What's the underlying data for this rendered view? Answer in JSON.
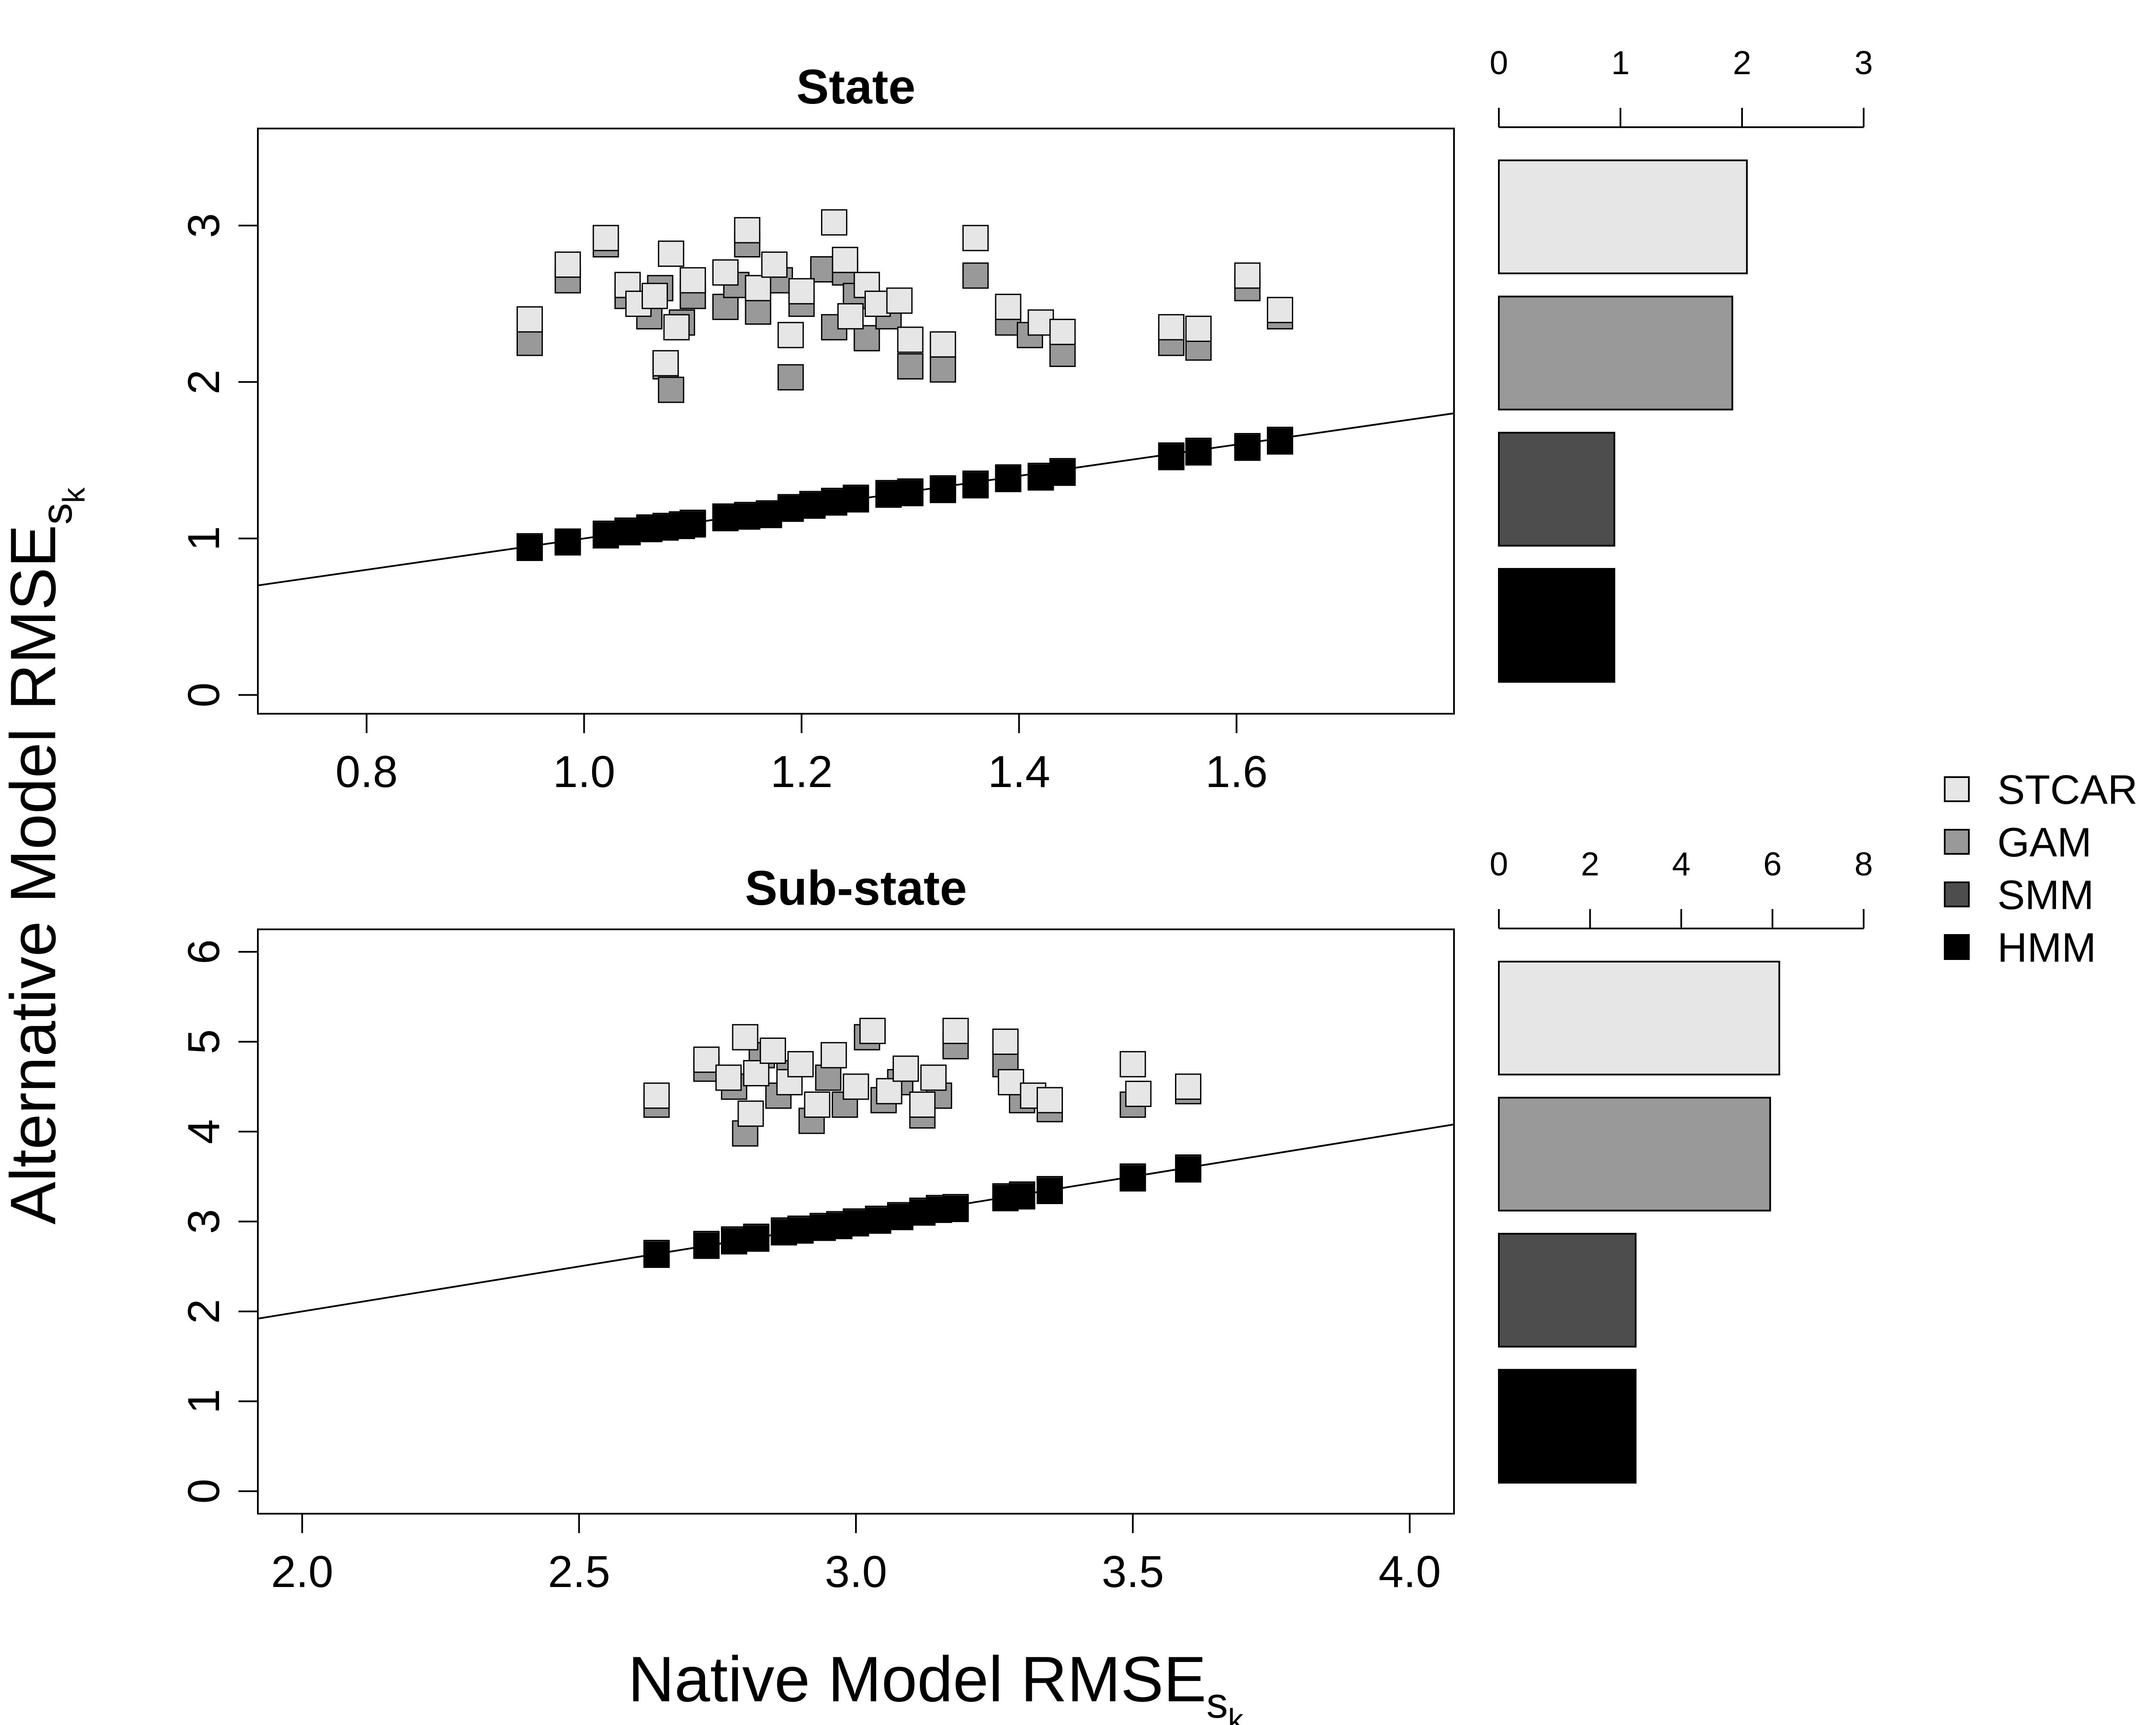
{
  "legend": [
    {
      "name": "STCAR",
      "color": "#e6e6e6"
    },
    {
      "name": "GAM",
      "color": "#999999"
    },
    {
      "name": "SMM",
      "color": "#4d4d4d"
    },
    {
      "name": "HMM",
      "color": "#000000"
    }
  ],
  "axes": {
    "xlabel_main": "Native Model RMSE",
    "ylabel_main": "Alternative Model RMSE",
    "label_subscript": "s",
    "label_subsubscript": "k"
  },
  "chart_data": [
    {
      "type": "scatter",
      "title": "State",
      "xlim": [
        0.7,
        1.8
      ],
      "ylim": [
        -0.12,
        3.62
      ],
      "xticks": [
        "0.8",
        "1.0",
        "1.2",
        "1.4",
        "1.6"
      ],
      "yticks": [
        "0",
        "1",
        "2",
        "3"
      ],
      "reference_line": {
        "slope": 1,
        "intercept": 0
      },
      "series": [
        {
          "name": "SMM",
          "points": [
            [
              0.95,
              0.95
            ],
            [
              0.985,
              0.98
            ],
            [
              1.02,
              1.03
            ],
            [
              1.04,
              1.05
            ],
            [
              1.06,
              1.07
            ],
            [
              1.075,
              1.08
            ],
            [
              1.09,
              1.09
            ],
            [
              1.1,
              1.1
            ],
            [
              1.13,
              1.14
            ],
            [
              1.15,
              1.15
            ],
            [
              1.17,
              1.16
            ],
            [
              1.19,
              1.2
            ],
            [
              1.21,
              1.22
            ],
            [
              1.23,
              1.24
            ],
            [
              1.25,
              1.26
            ],
            [
              1.28,
              1.29
            ],
            [
              1.3,
              1.3
            ],
            [
              1.33,
              1.32
            ],
            [
              1.36,
              1.35
            ],
            [
              1.39,
              1.39
            ],
            [
              1.42,
              1.4
            ],
            [
              1.44,
              1.43
            ],
            [
              1.54,
              1.53
            ],
            [
              1.565,
              1.56
            ],
            [
              1.61,
              1.59
            ],
            [
              1.64,
              1.63
            ]
          ]
        },
        {
          "name": "HMM",
          "points": [
            [
              0.95,
              0.94
            ],
            [
              0.985,
              0.975
            ],
            [
              1.02,
              1.02
            ],
            [
              1.04,
              1.04
            ],
            [
              1.06,
              1.06
            ],
            [
              1.075,
              1.07
            ],
            [
              1.09,
              1.08
            ],
            [
              1.1,
              1.09
            ],
            [
              1.13,
              1.13
            ],
            [
              1.15,
              1.14
            ],
            [
              1.17,
              1.15
            ],
            [
              1.19,
              1.19
            ],
            [
              1.21,
              1.21
            ],
            [
              1.23,
              1.23
            ],
            [
              1.25,
              1.25
            ],
            [
              1.28,
              1.28
            ],
            [
              1.3,
              1.29
            ],
            [
              1.33,
              1.31
            ],
            [
              1.36,
              1.34
            ],
            [
              1.39,
              1.38
            ],
            [
              1.42,
              1.39
            ],
            [
              1.44,
              1.42
            ],
            [
              1.54,
              1.52
            ],
            [
              1.565,
              1.55
            ],
            [
              1.61,
              1.58
            ],
            [
              1.64,
              1.62
            ]
          ]
        },
        {
          "name": "GAM",
          "points": [
            [
              0.95,
              2.25
            ],
            [
              0.985,
              2.65
            ],
            [
              1.02,
              2.88
            ],
            [
              1.04,
              2.55
            ],
            [
              1.06,
              2.42
            ],
            [
              1.07,
              2.6
            ],
            [
              1.075,
              2.1
            ],
            [
              1.08,
              1.95
            ],
            [
              1.09,
              2.38
            ],
            [
              1.1,
              2.55
            ],
            [
              1.13,
              2.48
            ],
            [
              1.14,
              2.62
            ],
            [
              1.15,
              2.88
            ],
            [
              1.16,
              2.45
            ],
            [
              1.18,
              2.65
            ],
            [
              1.19,
              2.03
            ],
            [
              1.2,
              2.5
            ],
            [
              1.22,
              2.72
            ],
            [
              1.23,
              2.35
            ],
            [
              1.24,
              2.7
            ],
            [
              1.25,
              2.55
            ],
            [
              1.26,
              2.28
            ],
            [
              1.28,
              2.42
            ],
            [
              1.3,
              2.1
            ],
            [
              1.33,
              2.08
            ],
            [
              1.36,
              2.68
            ],
            [
              1.39,
              2.38
            ],
            [
              1.41,
              2.3
            ],
            [
              1.44,
              2.18
            ],
            [
              1.54,
              2.25
            ],
            [
              1.565,
              2.22
            ],
            [
              1.61,
              2.6
            ],
            [
              1.64,
              2.42
            ]
          ]
        },
        {
          "name": "STCAR",
          "points": [
            [
              0.95,
              2.4
            ],
            [
              0.985,
              2.75
            ],
            [
              1.02,
              2.92
            ],
            [
              1.04,
              2.62
            ],
            [
              1.05,
              2.5
            ],
            [
              1.065,
              2.55
            ],
            [
              1.075,
              2.12
            ],
            [
              1.08,
              2.82
            ],
            [
              1.085,
              2.35
            ],
            [
              1.1,
              2.65
            ],
            [
              1.13,
              2.7
            ],
            [
              1.15,
              2.97
            ],
            [
              1.16,
              2.6
            ],
            [
              1.175,
              2.75
            ],
            [
              1.19,
              2.3
            ],
            [
              1.2,
              2.58
            ],
            [
              1.23,
              3.02
            ],
            [
              1.24,
              2.78
            ],
            [
              1.245,
              2.42
            ],
            [
              1.26,
              2.62
            ],
            [
              1.27,
              2.5
            ],
            [
              1.29,
              2.52
            ],
            [
              1.3,
              2.27
            ],
            [
              1.33,
              2.24
            ],
            [
              1.36,
              2.92
            ],
            [
              1.39,
              2.48
            ],
            [
              1.42,
              2.38
            ],
            [
              1.44,
              2.32
            ],
            [
              1.54,
              2.35
            ],
            [
              1.565,
              2.34
            ],
            [
              1.61,
              2.68
            ],
            [
              1.64,
              2.46
            ]
          ]
        }
      ]
    },
    {
      "type": "scatter",
      "title": "Sub-state",
      "xlim": [
        1.92,
        4.08
      ],
      "ylim": [
        -0.25,
        6.25
      ],
      "xticks": [
        "2.0",
        "2.5",
        "3.0",
        "3.5",
        "4.0"
      ],
      "yticks": [
        "0",
        "1",
        "2",
        "3",
        "4",
        "5",
        "6"
      ],
      "reference_line": {
        "slope": 1,
        "intercept": 0
      },
      "series": [
        {
          "name": "SMM",
          "points": [
            [
              2.64,
              2.65
            ],
            [
              2.73,
              2.75
            ],
            [
              2.78,
              2.8
            ],
            [
              2.82,
              2.83
            ],
            [
              2.87,
              2.9
            ],
            [
              2.9,
              2.92
            ],
            [
              2.94,
              2.95
            ],
            [
              2.97,
              2.97
            ],
            [
              3.0,
              3.0
            ],
            [
              3.04,
              3.03
            ],
            [
              3.08,
              3.07
            ],
            [
              3.12,
              3.12
            ],
            [
              3.15,
              3.15
            ],
            [
              3.18,
              3.16
            ],
            [
              3.27,
              3.28
            ],
            [
              3.3,
              3.3
            ],
            [
              3.35,
              3.36
            ],
            [
              3.5,
              3.5
            ],
            [
              3.6,
              3.6
            ]
          ]
        },
        {
          "name": "HMM",
          "points": [
            [
              2.64,
              2.63
            ],
            [
              2.73,
              2.73
            ],
            [
              2.78,
              2.78
            ],
            [
              2.82,
              2.81
            ],
            [
              2.87,
              2.88
            ],
            [
              2.9,
              2.9
            ],
            [
              2.94,
              2.93
            ],
            [
              2.97,
              2.95
            ],
            [
              3.0,
              2.98
            ],
            [
              3.04,
              3.01
            ],
            [
              3.08,
              3.05
            ],
            [
              3.12,
              3.1
            ],
            [
              3.15,
              3.13
            ],
            [
              3.18,
              3.14
            ],
            [
              3.27,
              3.26
            ],
            [
              3.3,
              3.28
            ],
            [
              3.35,
              3.34
            ],
            [
              3.5,
              3.48
            ],
            [
              3.6,
              3.58
            ]
          ]
        },
        {
          "name": "GAM",
          "points": [
            [
              2.64,
              4.3
            ],
            [
              2.73,
              4.7
            ],
            [
              2.78,
              4.5
            ],
            [
              2.8,
              3.98
            ],
            [
              2.83,
              4.85
            ],
            [
              2.86,
              4.4
            ],
            [
              2.88,
              4.65
            ],
            [
              2.92,
              4.12
            ],
            [
              2.95,
              4.6
            ],
            [
              2.98,
              4.3
            ],
            [
              3.02,
              5.05
            ],
            [
              3.05,
              4.35
            ],
            [
              3.08,
              4.55
            ],
            [
              3.12,
              4.18
            ],
            [
              3.15,
              4.4
            ],
            [
              3.18,
              4.95
            ],
            [
              3.27,
              4.75
            ],
            [
              3.3,
              4.35
            ],
            [
              3.35,
              4.25
            ],
            [
              3.5,
              4.3
            ],
            [
              3.6,
              4.45
            ]
          ]
        },
        {
          "name": "STCAR",
          "points": [
            [
              2.64,
              4.4
            ],
            [
              2.73,
              4.8
            ],
            [
              2.77,
              4.6
            ],
            [
              2.8,
              5.05
            ],
            [
              2.81,
              4.2
            ],
            [
              2.82,
              4.65
            ],
            [
              2.85,
              4.9
            ],
            [
              2.88,
              4.55
            ],
            [
              2.9,
              4.75
            ],
            [
              2.93,
              4.3
            ],
            [
              2.96,
              4.85
            ],
            [
              3.0,
              4.5
            ],
            [
              3.03,
              5.12
            ],
            [
              3.06,
              4.45
            ],
            [
              3.09,
              4.7
            ],
            [
              3.12,
              4.3
            ],
            [
              3.14,
              4.6
            ],
            [
              3.18,
              5.12
            ],
            [
              3.27,
              5.0
            ],
            [
              3.28,
              4.55
            ],
            [
              3.32,
              4.4
            ],
            [
              3.35,
              4.35
            ],
            [
              3.5,
              4.75
            ],
            [
              3.51,
              4.42
            ],
            [
              3.6,
              4.5
            ]
          ]
        }
      ]
    },
    {
      "type": "bar",
      "panel": "State",
      "orientation": "horizontal",
      "xlim": [
        0,
        3
      ],
      "xticks": [
        "0",
        "1",
        "2",
        "3"
      ],
      "categories": [
        "STCAR",
        "GAM",
        "SMM",
        "HMM"
      ],
      "values": [
        2.04,
        1.92,
        0.95,
        0.95
      ]
    },
    {
      "type": "bar",
      "panel": "Sub-state",
      "orientation": "horizontal",
      "xlim": [
        0,
        8
      ],
      "xticks": [
        "0",
        "2",
        "4",
        "6",
        "8"
      ],
      "categories": [
        "STCAR",
        "GAM",
        "SMM",
        "HMM"
      ],
      "values": [
        6.15,
        5.95,
        3.0,
        3.0
      ]
    }
  ]
}
